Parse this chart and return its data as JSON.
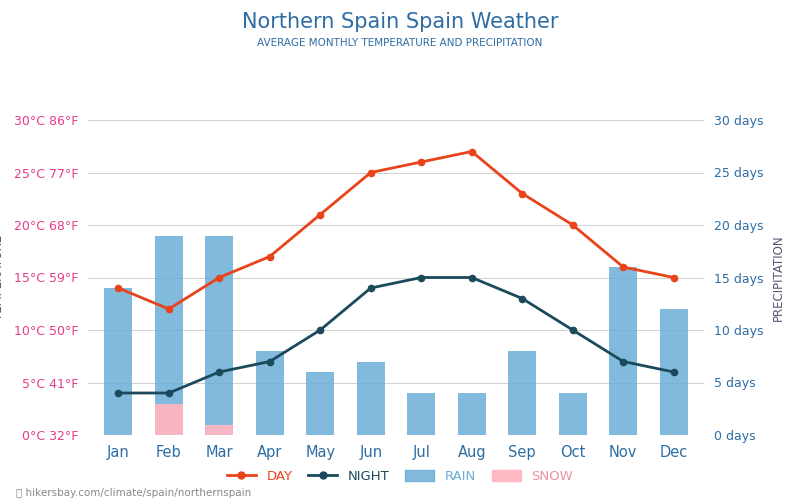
{
  "title": "Northern Spain Spain Weather",
  "subtitle": "AVERAGE MONTHLY TEMPERATURE AND PRECIPITATION",
  "months": [
    "Jan",
    "Feb",
    "Mar",
    "Apr",
    "May",
    "Jun",
    "Jul",
    "Aug",
    "Sep",
    "Oct",
    "Nov",
    "Dec"
  ],
  "day_temps": [
    14,
    12,
    15,
    17,
    21,
    25,
    26,
    27,
    23,
    20,
    16,
    15
  ],
  "night_temps": [
    4,
    4,
    6,
    7,
    10,
    14,
    15,
    15,
    13,
    10,
    7,
    6
  ],
  "rain_days": [
    14,
    19,
    19,
    8,
    6,
    7,
    4,
    4,
    8,
    4,
    16,
    12
  ],
  "snow_days": [
    0,
    3,
    1,
    0,
    0,
    0,
    0,
    0,
    0,
    0,
    0,
    0
  ],
  "rain_color": "#6baed6",
  "snow_color": "#ffb6c1",
  "day_color": "#e8431a",
  "night_color": "#1a4a5c",
  "title_color": "#2e6da4",
  "subtitle_color": "#2e6da4",
  "left_label_color": "#e83c8a",
  "right_label_color": "#2e6da4",
  "axis_label_color": "#555577",
  "temp_ticks": [
    0,
    5,
    10,
    15,
    20,
    25,
    30
  ],
  "temp_labels": [
    "0°C 32°F",
    "5°C 41°F",
    "10°C 50°F",
    "15°C 59°F",
    "20°C 68°F",
    "25°C 77°F",
    "30°C 86°F"
  ],
  "precip_ticks": [
    0,
    5,
    10,
    15,
    20,
    25,
    30
  ],
  "precip_labels": [
    "0 days",
    "5 days",
    "10 days",
    "15 days",
    "20 days",
    "25 days",
    "30 days"
  ],
  "ylim": [
    0,
    30
  ],
  "watermark": "hikersbay.com/climate/spain/northernspain",
  "left_axis_label": "TEMPERATURE",
  "right_axis_label": "PRECIPITATION",
  "legend_day": "DAY",
  "legend_night": "NIGHT",
  "legend_rain": "RAIN",
  "legend_snow": "SNOW",
  "background_color": "#ffffff",
  "grid_color": "#d0d0d0",
  "month_label_color": "#2e6da4"
}
